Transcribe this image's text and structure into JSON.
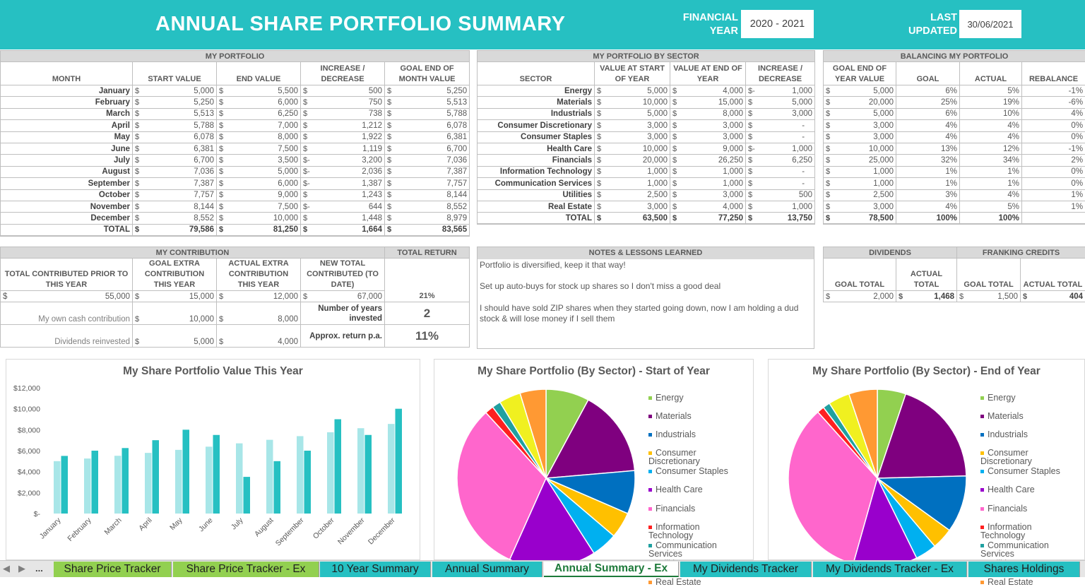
{
  "header": {
    "title": "ANNUAL SHARE PORTFOLIO SUMMARY",
    "fy_label_1": "FINANCIAL",
    "fy_label_2": "YEAR",
    "fy_value": "2020 - 2021",
    "lu_label_1": "LAST",
    "lu_label_2": "UPDATED",
    "lu_value": "30/06/2021"
  },
  "portfolio": {
    "section": "MY PORTFOLIO",
    "headers": [
      "MONTH",
      "START VALUE",
      "END VALUE",
      "INCREASE / DECREASE",
      "GOAL END OF MONTH VALUE"
    ],
    "rows": [
      {
        "month": "January",
        "start": "5,000",
        "end": "5,500",
        "inc": "500",
        "neg": "",
        "goal": "5,250"
      },
      {
        "month": "February",
        "start": "5,250",
        "end": "6,000",
        "inc": "750",
        "neg": "",
        "goal": "5,513"
      },
      {
        "month": "March",
        "start": "5,513",
        "end": "6,250",
        "inc": "738",
        "neg": "",
        "goal": "5,788"
      },
      {
        "month": "April",
        "start": "5,788",
        "end": "7,000",
        "inc": "1,212",
        "neg": "",
        "goal": "6,078"
      },
      {
        "month": "May",
        "start": "6,078",
        "end": "8,000",
        "inc": "1,922",
        "neg": "",
        "goal": "6,381"
      },
      {
        "month": "June",
        "start": "6,381",
        "end": "7,500",
        "inc": "1,119",
        "neg": "",
        "goal": "6,700"
      },
      {
        "month": "July",
        "start": "6,700",
        "end": "3,500",
        "inc": "3,200",
        "neg": "-",
        "goal": "7,036"
      },
      {
        "month": "August",
        "start": "7,036",
        "end": "5,000",
        "inc": "2,036",
        "neg": "-",
        "goal": "7,387"
      },
      {
        "month": "September",
        "start": "7,387",
        "end": "6,000",
        "inc": "1,387",
        "neg": "-",
        "goal": "7,757"
      },
      {
        "month": "October",
        "start": "7,757",
        "end": "9,000",
        "inc": "1,243",
        "neg": "",
        "goal": "8,144"
      },
      {
        "month": "November",
        "start": "8,144",
        "end": "7,500",
        "inc": "644",
        "neg": "-",
        "goal": "8,552"
      },
      {
        "month": "December",
        "start": "8,552",
        "end": "10,000",
        "inc": "1,448",
        "neg": "",
        "goal": "8,979"
      }
    ],
    "total": {
      "label": "TOTAL",
      "start": "79,586",
      "end": "81,250",
      "inc": "1,664",
      "goal": "83,565"
    }
  },
  "sector": {
    "section": "MY PORTFOLIO BY SECTOR",
    "headers": [
      "SECTOR",
      "VALUE AT START OF YEAR",
      "VALUE AT END OF YEAR",
      "INCREASE / DECREASE"
    ],
    "rows": [
      {
        "name": "Energy",
        "start": "5,000",
        "end": "4,000",
        "inc": "1,000",
        "neg": "-"
      },
      {
        "name": "Materials",
        "start": "10,000",
        "end": "15,000",
        "inc": "5,000",
        "neg": ""
      },
      {
        "name": "Industrials",
        "start": "5,000",
        "end": "8,000",
        "inc": "3,000",
        "neg": ""
      },
      {
        "name": "Consumer Discretionary",
        "start": "3,000",
        "end": "3,000",
        "inc": "-",
        "neg": ""
      },
      {
        "name": "Consumer Staples",
        "start": "3,000",
        "end": "3,000",
        "inc": "-",
        "neg": ""
      },
      {
        "name": "Health Care",
        "start": "10,000",
        "end": "9,000",
        "inc": "1,000",
        "neg": "-"
      },
      {
        "name": "Financials",
        "start": "20,000",
        "end": "26,250",
        "inc": "6,250",
        "neg": ""
      },
      {
        "name": "Information Technology",
        "start": "1,000",
        "end": "1,000",
        "inc": "-",
        "neg": ""
      },
      {
        "name": "Communication Services",
        "start": "1,000",
        "end": "1,000",
        "inc": "-",
        "neg": ""
      },
      {
        "name": "Utilities",
        "start": "2,500",
        "end": "3,000",
        "inc": "500",
        "neg": ""
      },
      {
        "name": "Real Estate",
        "start": "3,000",
        "end": "4,000",
        "inc": "1,000",
        "neg": ""
      }
    ],
    "total": {
      "label": "TOTAL",
      "start": "63,500",
      "end": "77,250",
      "inc": "13,750"
    }
  },
  "balancing": {
    "section": "BALANCING MY PORTFOLIO",
    "headers": [
      "GOAL END OF YEAR VALUE",
      "GOAL",
      "ACTUAL",
      "REBALANCE"
    ],
    "rows": [
      {
        "goalval": "5,000",
        "goal": "6%",
        "actual": "5%",
        "reb": "-1%"
      },
      {
        "goalval": "20,000",
        "goal": "25%",
        "actual": "19%",
        "reb": "-6%"
      },
      {
        "goalval": "5,000",
        "goal": "6%",
        "actual": "10%",
        "reb": "4%"
      },
      {
        "goalval": "3,000",
        "goal": "4%",
        "actual": "4%",
        "reb": "0%"
      },
      {
        "goalval": "3,000",
        "goal": "4%",
        "actual": "4%",
        "reb": "0%"
      },
      {
        "goalval": "10,000",
        "goal": "13%",
        "actual": "12%",
        "reb": "-1%"
      },
      {
        "goalval": "25,000",
        "goal": "32%",
        "actual": "34%",
        "reb": "2%"
      },
      {
        "goalval": "1,000",
        "goal": "1%",
        "actual": "1%",
        "reb": "0%"
      },
      {
        "goalval": "1,000",
        "goal": "1%",
        "actual": "1%",
        "reb": "0%"
      },
      {
        "goalval": "2,500",
        "goal": "3%",
        "actual": "4%",
        "reb": "1%"
      },
      {
        "goalval": "3,000",
        "goal": "4%",
        "actual": "5%",
        "reb": "1%"
      }
    ],
    "total": {
      "goalval": "78,500",
      "goal": "100%",
      "actual": "100%"
    }
  },
  "contribution": {
    "section": "MY CONTRIBUTION",
    "return_section": "TOTAL RETURN",
    "headers": [
      "TOTAL CONTRIBUTED PRIOR TO THIS YEAR",
      "GOAL EXTRA CONTRIBUTION THIS YEAR",
      "ACTUAL EXTRA CONTRIBUTION THIS YEAR",
      "NEW TOTAL CONTRIBUTED (TO DATE)"
    ],
    "prior": "55,000",
    "goal_extra": "15,000",
    "actual_extra": "12,000",
    "new_total": "67,000",
    "total_return": "21%",
    "own_label": "My own cash contribution",
    "own_goal": "10,000",
    "own_actual": "8,000",
    "years_label": "Number of years invested",
    "years": "2",
    "div_label": "Dividends reinvested",
    "div_goal": "5,000",
    "div_actual": "4,000",
    "approx_label": "Approx. return p.a.",
    "approx": "11%"
  },
  "notes": {
    "section": "NOTES & LESSONS LEARNED",
    "lines": [
      "Portfolio is diversified, keep it that way!",
      "Set up auto-buys for stock up shares so I don't miss a good deal",
      "I should have sold ZIP shares when they started going down, now I am holding a dud stock & will lose money if I sell them"
    ]
  },
  "dividends": {
    "section": "DIVIDENDS",
    "headers": [
      "GOAL TOTAL",
      "ACTUAL TOTAL"
    ],
    "goal": "2,000",
    "actual": "1,468"
  },
  "franking": {
    "section": "FRANKING CREDITS",
    "headers": [
      "GOAL TOTAL",
      "ACTUAL TOTAL"
    ],
    "goal": "1,500",
    "actual": "404"
  },
  "colors": {
    "header": "#26c0c2",
    "bar_start": "#a8e6e8",
    "bar_end": "#26c0c2"
  },
  "chart_data": [
    {
      "type": "bar",
      "title": "My Share Portfolio Value This Year",
      "categories": [
        "January",
        "February",
        "March",
        "April",
        "May",
        "June",
        "July",
        "August",
        "September",
        "October",
        "November",
        "December"
      ],
      "series": [
        {
          "values": [
            5000,
            5250,
            5513,
            5788,
            6078,
            6381,
            6700,
            7036,
            7387,
            7757,
            8144,
            8552
          ],
          "color": "#a8e6e8"
        },
        {
          "values": [
            5500,
            6000,
            6250,
            7000,
            8000,
            7500,
            3500,
            5000,
            6000,
            9000,
            7500,
            10000
          ],
          "color": "#26c0c2"
        }
      ],
      "yticks": [
        "$-",
        "$2,000",
        "$4,000",
        "$6,000",
        "$8,000",
        "$10,000",
        "$12,000"
      ],
      "ylim": [
        0,
        12000
      ],
      "grid": false
    },
    {
      "type": "pie",
      "title": "My Share Portfolio (By Sector) - Start of Year",
      "labels": [
        "Energy",
        "Materials",
        "Industrials",
        "Consumer Discretionary",
        "Consumer Staples",
        "Health Care",
        "Financials",
        "Information Technology",
        "Communication Services",
        "Utilities",
        "Real Estate"
      ],
      "values": [
        5000,
        10000,
        5000,
        3000,
        3000,
        10000,
        20000,
        1000,
        1000,
        2500,
        3000
      ],
      "colors": [
        "#92d050",
        "#7f007f",
        "#0070c0",
        "#ffc000",
        "#00b0f0",
        "#9900cc",
        "#ff66cc",
        "#ff2020",
        "#20a0a0",
        "#f0f020",
        "#ff9933"
      ],
      "legend": "right"
    },
    {
      "type": "pie",
      "title": "My Share Portfolio (By Sector) - End of Year",
      "labels": [
        "Energy",
        "Materials",
        "Industrials",
        "Consumer Discretionary",
        "Consumer Staples",
        "Health Care",
        "Financials",
        "Information Technology",
        "Communication Services",
        "Utilities",
        "Real Estate"
      ],
      "values": [
        4000,
        15000,
        8000,
        3000,
        3000,
        9000,
        26250,
        1000,
        1000,
        3000,
        4000
      ],
      "colors": [
        "#92d050",
        "#7f007f",
        "#0070c0",
        "#ffc000",
        "#00b0f0",
        "#9900cc",
        "#ff66cc",
        "#ff2020",
        "#20a0a0",
        "#f0f020",
        "#ff9933"
      ],
      "legend": "right"
    }
  ],
  "tabs": {
    "nav_more": "...",
    "items": [
      {
        "label": "Share Price Tracker",
        "color": "#92d050"
      },
      {
        "label": "Share Price Tracker - Ex",
        "color": "#92d050"
      },
      {
        "label": "10 Year Summary",
        "color": "#26c0c2"
      },
      {
        "label": "Annual Summary",
        "color": "#26c0c2"
      },
      {
        "label": "Annual Summary - Ex",
        "color": "#ffffff"
      },
      {
        "label": "My Dividends Tracker",
        "color": "#26c0c2"
      },
      {
        "label": "My Dividends Tracker - Ex",
        "color": "#26c0c2"
      },
      {
        "label": "Shares Holdings",
        "color": "#26c0c2"
      }
    ],
    "active": 4
  }
}
